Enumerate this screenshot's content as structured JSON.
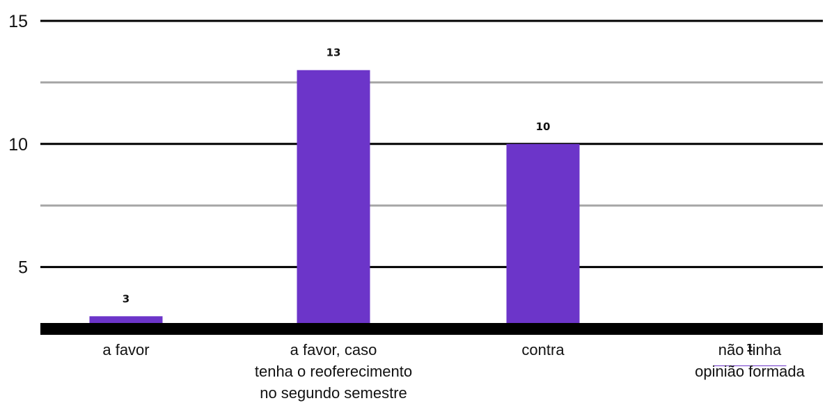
{
  "chart_data": {
    "type": "bar",
    "categories": [
      [
        "a favor"
      ],
      [
        "a favor, caso",
        "tenha o reoferecimento",
        "no segundo semestre"
      ],
      [
        "contra"
      ],
      [
        "não tinha",
        "opinião formada"
      ]
    ],
    "values": [
      3,
      13,
      10,
      1
    ],
    "data_labels": [
      "3",
      "13",
      "10",
      "1"
    ],
    "yticks": [
      5,
      10,
      15
    ],
    "ytick_labels": [
      "5",
      "10",
      "15"
    ],
    "ylim": [
      2.5,
      15
    ],
    "grid": true,
    "bar_color": "#6c35c9",
    "major_grid_color": "#000000",
    "minor_grid_color": "#a6a6a6",
    "axis_color": "#000000"
  }
}
